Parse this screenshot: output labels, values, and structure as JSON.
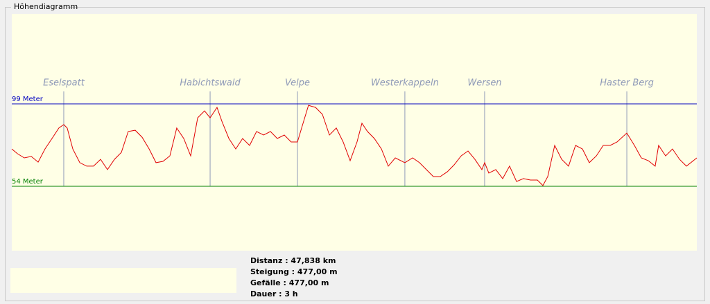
{
  "group_title": "Höhendiagramm",
  "stats": [
    "Distanz : 47,838 km",
    "Steigung : 477,00 m",
    "Gefälle : 477,00 m",
    "Dauer : 3 h"
  ],
  "chart_data": {
    "type": "line",
    "color": "#e00000",
    "x": [
      0,
      0.39,
      0.87,
      1.36,
      1.84,
      2.32,
      2.81,
      3.29,
      3.63,
      3.87,
      4.26,
      4.75,
      5.23,
      5.71,
      6.2,
      6.68,
      7.17,
      7.65,
      8.13,
      8.62,
      9.1,
      9.59,
      10.07,
      10.56,
      11.04,
      11.52,
      12.01,
      12.49,
      12.98,
      13.46,
      13.85,
      14.33,
      14.67,
      15.16,
      15.64,
      16.12,
      16.61,
      17.09,
      17.58,
      18.06,
      18.54,
      19.03,
      19.51,
      19.95,
      20.24,
      20.72,
      21.21,
      21.69,
      22.18,
      22.66,
      23.14,
      23.63,
      24.11,
      24.45,
      24.84,
      25.32,
      25.81,
      26.29,
      26.78,
      27.45,
      27.99,
      28.47,
      28.95,
      29.44,
      29.92,
      30.41,
      30.89,
      31.38,
      31.86,
      32.34,
      32.83,
      33.02,
      33.31,
      33.8,
      34.28,
      34.76,
      35.25,
      35.73,
      36.22,
      36.7,
      37.09,
      37.43,
      37.91,
      38.4,
      38.88,
      39.37,
      39.85,
      40.33,
      40.82,
      41.3,
      41.79,
      42.27,
      42.95,
      43.48,
      43.96,
      44.45,
      44.93,
      45.17,
      45.66,
      46.14,
      46.63,
      47.11,
      47.84
    ],
    "values": [
      74.4,
      71.8,
      69.5,
      70.3,
      67.2,
      74.4,
      80.1,
      85.8,
      87.7,
      85.8,
      74.4,
      66.9,
      65,
      65,
      68.7,
      63.1,
      68.7,
      72.5,
      83.9,
      84.6,
      80.8,
      74.4,
      66.9,
      67.6,
      70.6,
      85.8,
      80.1,
      70.6,
      91.4,
      95.2,
      91.4,
      97.1,
      89.5,
      80.1,
      74.4,
      80.1,
      76.3,
      83.9,
      82,
      83.9,
      80.1,
      82,
      78.2,
      78.2,
      85.8,
      98.2,
      97.1,
      93.3,
      82,
      85.8,
      78.2,
      68,
      78.2,
      88.4,
      83.9,
      80.1,
      74.4,
      65,
      69.5,
      66.9,
      69.5,
      66.9,
      63.1,
      59.3,
      59.3,
      61.9,
      65.7,
      70.6,
      73.3,
      68.7,
      63.1,
      66.9,
      61.2,
      63.1,
      58.2,
      65,
      56.6,
      58.2,
      57.4,
      57.4,
      54.4,
      59.3,
      76.3,
      68.7,
      65,
      76.3,
      74.4,
      66.9,
      70.6,
      76.3,
      76.3,
      78.2,
      83.1,
      76.3,
      69.5,
      68,
      65,
      76.3,
      70.6,
      74.4,
      68.7,
      65,
      69.5
    ],
    "xlim": [
      0,
      47.838
    ],
    "ylim": [
      18.8,
      148.2
    ],
    "yticks": [
      {
        "value": 99,
        "label": "99 Meter"
      },
      {
        "value": 54,
        "label": "54 Meter"
      }
    ],
    "tick_colors": [
      "#0000c0",
      "#008000"
    ],
    "marker_color": "#8f9ab8",
    "markers": [
      {
        "name": "Eselspatt",
        "x": 3.63
      },
      {
        "name": "Habichtswald",
        "x": 13.85
      },
      {
        "name": "Velpe",
        "x": 19.95
      },
      {
        "name": "Westerkappeln",
        "x": 27.45
      },
      {
        "name": "Wersen",
        "x": 33.02
      },
      {
        "name": "Haster Berg",
        "x": 42.95
      }
    ]
  }
}
